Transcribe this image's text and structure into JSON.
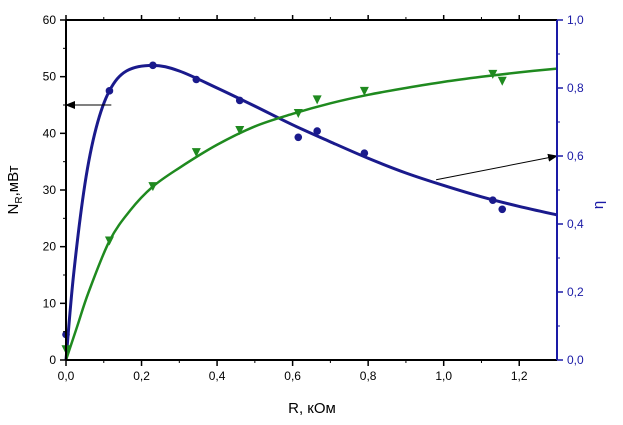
{
  "chart_data": {
    "type": "scatter",
    "xlabel": "R, кОм",
    "ylabel_main": "N",
    "ylabel_sub": "R",
    "ylabel_unit": ",мВт",
    "y2label": "η",
    "xlim": [
      0,
      1.3
    ],
    "ylim": [
      0,
      60
    ],
    "y2lim": [
      0,
      1.0
    ],
    "grid": false,
    "legend": "none",
    "x_ticks": [
      "0,0",
      "0,2",
      "0,4",
      "0,6",
      "0,8",
      "1,0",
      "1,2"
    ],
    "x_tick_values": [
      0,
      0.2,
      0.4,
      0.6,
      0.8,
      1.0,
      1.2
    ],
    "y_ticks": [
      "0",
      "10",
      "20",
      "30",
      "40",
      "50",
      "60"
    ],
    "y_tick_values": [
      0,
      10,
      20,
      30,
      40,
      50,
      60
    ],
    "y2_ticks": [
      "0,0",
      "0,2",
      "0,4",
      "0,6",
      "0,8",
      "1,0"
    ],
    "y2_tick_values": [
      0,
      0.2,
      0.4,
      0.6,
      0.8,
      1.0
    ],
    "colors": {
      "power": "#1a1a8c",
      "efficiency": "#1f8a1f",
      "right_axis": "#1a1aa6",
      "left_axis": "#000000"
    },
    "series": [
      {
        "axis": "left",
        "marker": "circle",
        "points": [
          {
            "x": 0.0,
            "y": 4.5
          },
          {
            "x": 0.115,
            "y": 47.5
          },
          {
            "x": 0.23,
            "y": 52.0
          },
          {
            "x": 0.345,
            "y": 49.5
          },
          {
            "x": 0.46,
            "y": 45.8
          },
          {
            "x": 0.615,
            "y": 39.3
          },
          {
            "x": 0.665,
            "y": 40.4
          },
          {
            "x": 0.79,
            "y": 36.5
          },
          {
            "x": 1.13,
            "y": 28.2
          },
          {
            "x": 1.155,
            "y": 26.6
          }
        ],
        "fit": [
          {
            "x": 0.0,
            "y": 0.0
          },
          {
            "x": 0.02,
            "y": 15.0
          },
          {
            "x": 0.05,
            "y": 31.0
          },
          {
            "x": 0.08,
            "y": 41.0
          },
          {
            "x": 0.115,
            "y": 47.5
          },
          {
            "x": 0.16,
            "y": 51.0
          },
          {
            "x": 0.23,
            "y": 52.0
          },
          {
            "x": 0.3,
            "y": 51.0
          },
          {
            "x": 0.4,
            "y": 48.0
          },
          {
            "x": 0.5,
            "y": 44.8
          },
          {
            "x": 0.6,
            "y": 41.5
          },
          {
            "x": 0.7,
            "y": 38.5
          },
          {
            "x": 0.8,
            "y": 35.6
          },
          {
            "x": 0.9,
            "y": 33.0
          },
          {
            "x": 1.0,
            "y": 30.8
          },
          {
            "x": 1.1,
            "y": 28.8
          },
          {
            "x": 1.2,
            "y": 27.1
          },
          {
            "x": 1.3,
            "y": 25.6
          }
        ]
      },
      {
        "axis": "right",
        "marker": "triangle-down",
        "points": [
          {
            "x": 0.0,
            "y": 0.03
          },
          {
            "x": 0.115,
            "y": 0.35
          },
          {
            "x": 0.23,
            "y": 0.51
          },
          {
            "x": 0.345,
            "y": 0.61
          },
          {
            "x": 0.46,
            "y": 0.675
          },
          {
            "x": 0.615,
            "y": 0.725
          },
          {
            "x": 0.665,
            "y": 0.765
          },
          {
            "x": 0.79,
            "y": 0.79
          },
          {
            "x": 1.13,
            "y": 0.84
          },
          {
            "x": 1.155,
            "y": 0.82
          }
        ],
        "fit": [
          {
            "x": 0.0,
            "y": 0.0
          },
          {
            "x": 0.03,
            "y": 0.1
          },
          {
            "x": 0.06,
            "y": 0.2
          },
          {
            "x": 0.115,
            "y": 0.35
          },
          {
            "x": 0.17,
            "y": 0.44
          },
          {
            "x": 0.23,
            "y": 0.51
          },
          {
            "x": 0.3,
            "y": 0.565
          },
          {
            "x": 0.4,
            "y": 0.633
          },
          {
            "x": 0.5,
            "y": 0.687
          },
          {
            "x": 0.6,
            "y": 0.724
          },
          {
            "x": 0.7,
            "y": 0.755
          },
          {
            "x": 0.8,
            "y": 0.78
          },
          {
            "x": 0.9,
            "y": 0.8
          },
          {
            "x": 1.0,
            "y": 0.818
          },
          {
            "x": 1.1,
            "y": 0.833
          },
          {
            "x": 1.2,
            "y": 0.846
          },
          {
            "x": 1.3,
            "y": 0.857
          }
        ]
      }
    ],
    "annotations": [
      {
        "type": "arrow",
        "points_to": "left-axis",
        "from": {
          "x": 0.12,
          "y": 45
        },
        "to": {
          "x": 0.0,
          "y": 45
        }
      },
      {
        "type": "arrow",
        "points_to": "right-axis",
        "from": {
          "x": 0.98,
          "y": 0.53
        },
        "to": {
          "x": 1.3,
          "y": 0.6
        }
      }
    ]
  }
}
